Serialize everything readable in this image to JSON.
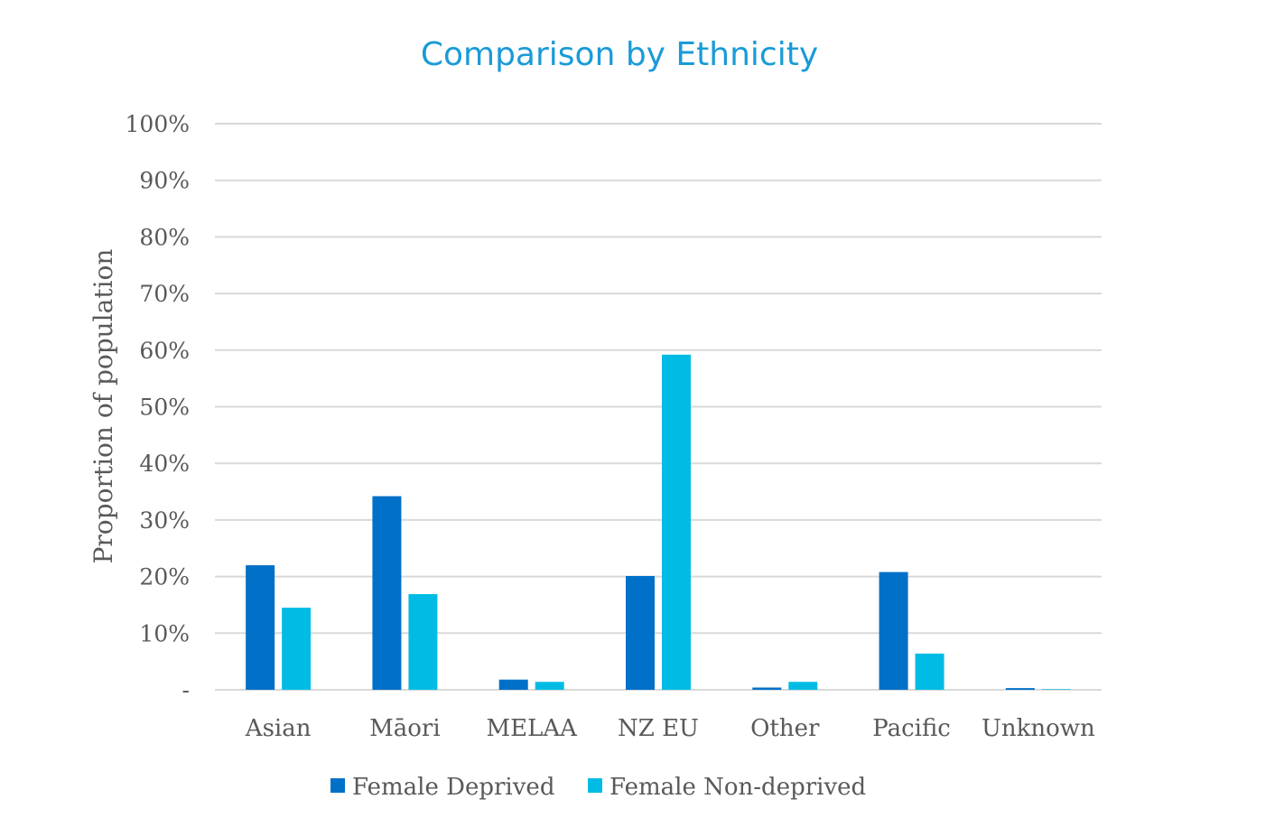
{
  "chart_data": {
    "type": "bar",
    "title": "Comparison by Ethnicity",
    "xlabel": "",
    "ylabel": "Proportion of population",
    "ylim": [
      0,
      100
    ],
    "y_ticks": [
      "-",
      "10%",
      "20%",
      "30%",
      "40%",
      "50%",
      "60%",
      "70%",
      "80%",
      "90%",
      "100%"
    ],
    "categories": [
      "Asian",
      "Māori",
      "MELAA",
      "NZ EU",
      "Other",
      "Pacific",
      "Unknown"
    ],
    "series": [
      {
        "name": "Female Deprived",
        "color": "#0070c8",
        "values": [
          22.0,
          34.2,
          1.8,
          20.1,
          0.4,
          20.8,
          0.3
        ]
      },
      {
        "name": "Female Non-deprived",
        "color": "#00bce4",
        "values": [
          14.5,
          16.9,
          1.4,
          59.2,
          1.4,
          6.4,
          0.1
        ]
      }
    ],
    "grid": true,
    "legend_position": "bottom"
  }
}
